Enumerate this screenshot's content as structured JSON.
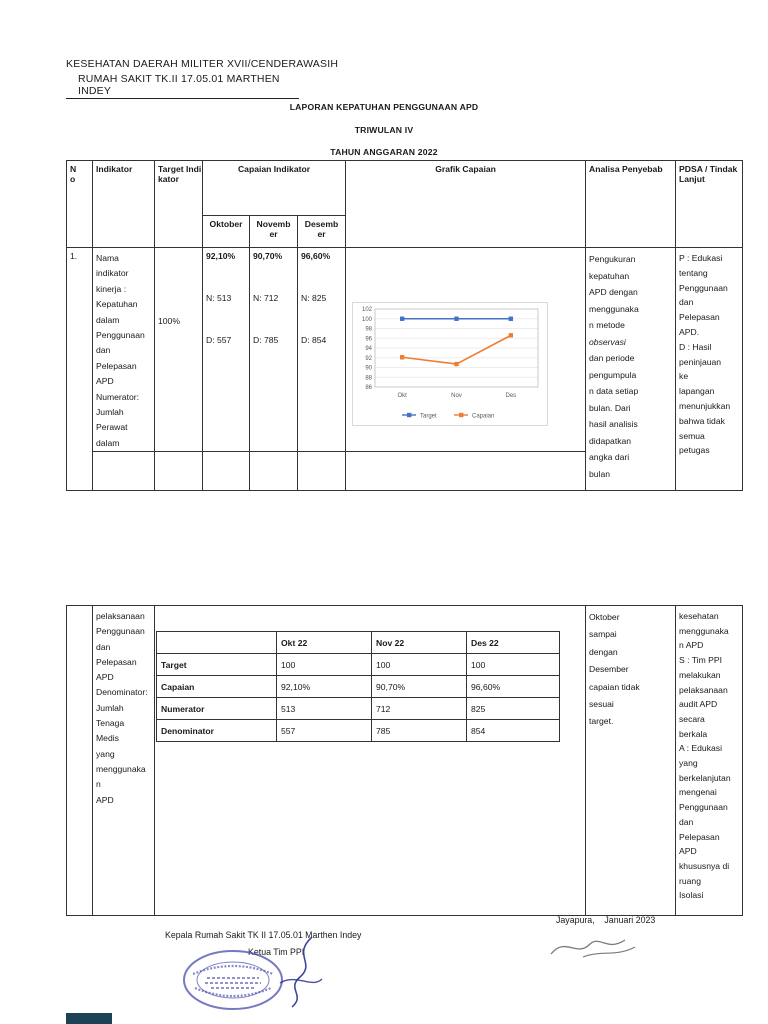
{
  "letterhead": {
    "line1": "KESEHATAN DAERAH MILITER XVII/CENDERAWASIH",
    "line2": "RUMAH SAKIT TK.II 17.05.01 MARTHEN INDEY"
  },
  "titles": {
    "title1": "LAPORAN KEPATUHAN PENGGUNAAN APD",
    "title2": "TRIWULAN IV",
    "title3": "TAHUN ANGGARAN 2022"
  },
  "table": {
    "headers": {
      "no": "No",
      "indikator": "Indikator",
      "target": "Target Indikator",
      "capaian": "Capaian Indikator",
      "months": [
        "Oktober",
        "November",
        "Desember"
      ],
      "grafik": "Grafik Capaian",
      "analisa": "Analisa Penyebab",
      "pdsa": "PDSA / Tindak Lanjut"
    },
    "row1": {
      "no": "1.",
      "indikator_lines": [
        "Nama",
        "indikator",
        "kinerja :",
        "Kepatuhan",
        "dalam",
        "Penggunaan",
        "dan",
        "Pelepasan",
        "APD",
        "Numerator:",
        "Jumlah",
        "Perawat",
        "dalam"
      ],
      "target": "100%",
      "capaian": [
        {
          "pct": "92,10%",
          "n": "N: 513",
          "d": "D: 557"
        },
        {
          "pct": "90,70%",
          "n": "N: 712",
          "d": "D: 785"
        },
        {
          "pct": "96,60%",
          "n": "N: 825",
          "d": "D: 854"
        }
      ],
      "analisa_lines": [
        "Pengukuran",
        "kepatuhan",
        "APD dengan",
        "menggunaka",
        "n metode",
        {
          "t": "observasi",
          "i": true
        },
        "dan periode",
        "pengumpula",
        "n data setiap",
        "bulan. Dari",
        "hasil analisis",
        "didapatkan",
        "angka dari",
        "bulan"
      ],
      "pdsa_lines": [
        "P : Edukasi",
        "tentang",
        "Penggunaan",
        "dan",
        "Pelepasan",
        "APD.",
        "D : Hasil",
        "peninjauan",
        "ke",
        "lapangan",
        "menunjukkan",
        "bahwa tidak",
        "semua",
        "petugas"
      ]
    },
    "row1_continued": {
      "indikator_lines": [
        "pelaksanaan",
        "Penggunaan",
        "dan",
        "Pelepasan",
        "APD",
        "Denominator:",
        "Jumlah",
        "Tenaga",
        "Medis",
        "yang",
        "menggunaka",
        "n",
        "APD"
      ],
      "analisa_lines": [
        "Oktober",
        "sampai",
        "dengan",
        "Desember",
        "capaian tidak",
        "sesuai",
        "target."
      ],
      "pdsa_lines": [
        "kesehatan",
        "menggunaka",
        "n APD",
        "S : Tim PPI",
        "melakukan",
        "pelaksanaan",
        "audit APD",
        "secara",
        "berkala",
        "A : Edukasi",
        "yang",
        "berkelanjutan",
        "mengenai",
        "Penggunaan",
        "dan",
        "Pelepasan",
        "APD",
        "khususnya di",
        "ruang",
        "Isolasi"
      ]
    }
  },
  "inner_table": {
    "header": [
      "",
      "Okt 22",
      "Nov 22",
      "Des 22"
    ],
    "rows": [
      [
        "Target",
        "100",
        "100",
        "100"
      ],
      [
        "Capaian",
        "92,10%",
        "90,70%",
        "96,60%"
      ],
      [
        "Numerator",
        "513",
        "712",
        "825"
      ],
      [
        "Denominator",
        "557",
        "785",
        "854"
      ]
    ]
  },
  "chart_data": {
    "type": "line",
    "x": [
      "Okt",
      "Nov",
      "Des"
    ],
    "series": [
      {
        "name": "Target",
        "values": [
          100,
          100,
          100
        ],
        "color": "#4472C4"
      },
      {
        "name": "Capaian",
        "values": [
          92.1,
          90.7,
          96.6
        ],
        "color": "#ED7D31"
      }
    ],
    "title": "",
    "xlabel": "",
    "ylabel": "",
    "ylim": [
      86,
      102
    ],
    "ytick_step": 2,
    "grid": true,
    "legend_position": "bottom"
  },
  "footer": {
    "place_date": "Jayapura,    Januari 2023",
    "sign_left_title": "Kepala Rumah Sakit TK II 17.05.01 Marthen Indey",
    "sign_right_title": "Ketua Tim PPI"
  },
  "colors": {
    "target_series": "#4472C4",
    "capaian_series": "#ED7D31",
    "stamp": "#474dab",
    "scan_bar": "#1c4355"
  }
}
